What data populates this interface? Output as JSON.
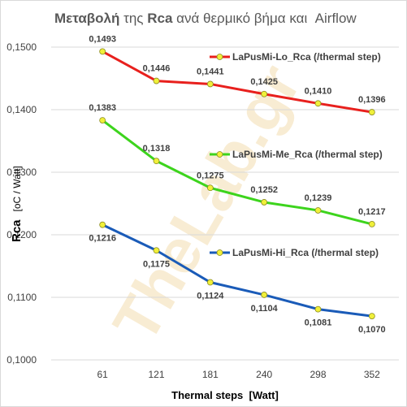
{
  "chart_data": {
    "type": "line",
    "title_bold_1": "Μεταβολή",
    "title_mid": " της ",
    "title_bold_2": "Rca",
    "title_rest": " ανά θερμικό βήμα και  Airflow",
    "xlabel": "Thermal steps  [Watt]",
    "ylabel_main": "Rca",
    "ylabel_unit": "[oC / Watt]",
    "categories": [
      "61",
      "121",
      "181",
      "240",
      "298",
      "352"
    ],
    "ylim": [
      0.1,
      0.15
    ],
    "yticks": [
      0.1,
      0.11,
      0.12,
      0.13,
      0.14,
      0.15
    ],
    "ytick_labels": [
      "0,1000",
      "0,1100",
      "0,1200",
      "0,1300",
      "0,1400",
      "0,1500"
    ],
    "grid": true,
    "watermark": "TheLab.gr",
    "series": [
      {
        "name": "LaPusMi-Lo_Rca (/thermal step)",
        "color": "#e8201d",
        "values": [
          0.1493,
          0.1446,
          0.1441,
          0.1425,
          0.141,
          0.1396
        ],
        "labels": [
          "0,1493",
          "0,1446",
          "0,1441",
          "0,1425",
          "0,1410",
          "0,1396"
        ],
        "label_pos": [
          "above",
          "above",
          "above",
          "above",
          "above",
          "above"
        ]
      },
      {
        "name": "LaPusMi-Me_Rca (/thermal step)",
        "color": "#3dd41d",
        "values": [
          0.1383,
          0.1318,
          0.1275,
          0.1252,
          0.1239,
          0.1217
        ],
        "labels": [
          "0,1383",
          "0,1318",
          "0,1275",
          "0,1252",
          "0,1239",
          "0,1217"
        ],
        "label_pos": [
          "above",
          "above",
          "above",
          "above",
          "above",
          "above"
        ]
      },
      {
        "name": "LaPusMi-Hi_Rca (/thermal step)",
        "color": "#1a5bb8",
        "values": [
          0.1216,
          0.1175,
          0.1124,
          0.1104,
          0.1081,
          0.107
        ],
        "labels": [
          "0,1216",
          "0,1175",
          "0,1124",
          "0,1104",
          "0,1081",
          "0,1070"
        ],
        "label_pos": [
          "below",
          "below",
          "below",
          "below",
          "below",
          "below"
        ]
      }
    ],
    "marker_fill": "#f0f03a"
  }
}
